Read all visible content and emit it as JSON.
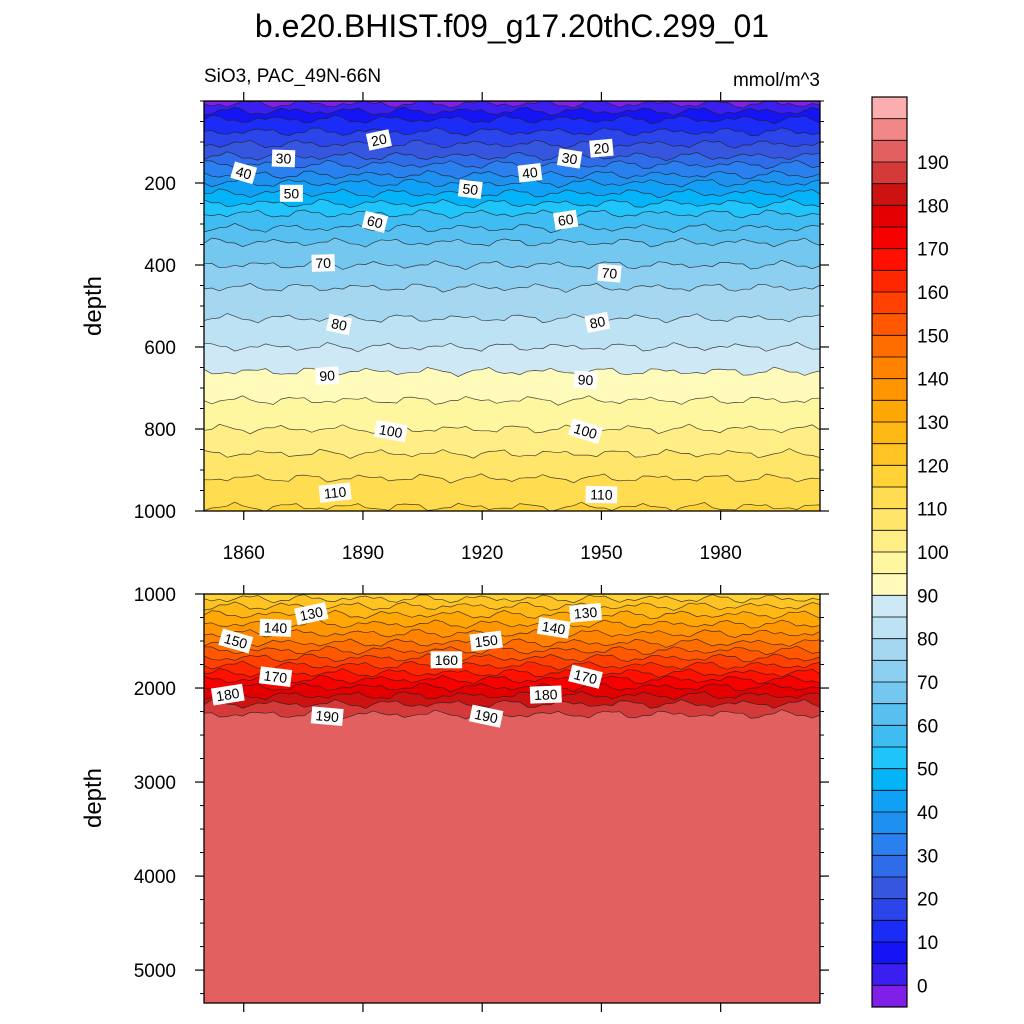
{
  "chart_data": {
    "type": "contour",
    "title": "b.e20.BHIST.f09_g17.20thC.299_01",
    "variable_label": "SiO3, PAC_49N-66N",
    "units": "mmol/m^3",
    "x_ticks": [
      1860,
      1890,
      1920,
      1950,
      1980
    ],
    "x_range": [
      1850,
      2005
    ],
    "panels": [
      {
        "name": "upper",
        "ylabel": "depth",
        "y_range": [
          0,
          1000
        ],
        "y_ticks": [
          200,
          400,
          600,
          800,
          1000
        ],
        "contour_interval": 5,
        "isolines": [
          {
            "value": 0,
            "depth": 7
          },
          {
            "value": 5,
            "depth": 25
          },
          {
            "value": 10,
            "depth": 45
          },
          {
            "value": 15,
            "depth": 75
          },
          {
            "value": 20,
            "depth": 105
          },
          {
            "value": 25,
            "depth": 135
          },
          {
            "value": 30,
            "depth": 155
          },
          {
            "value": 35,
            "depth": 180
          },
          {
            "value": 40,
            "depth": 200
          },
          {
            "value": 45,
            "depth": 225
          },
          {
            "value": 50,
            "depth": 250
          },
          {
            "value": 55,
            "depth": 275
          },
          {
            "value": 60,
            "depth": 310
          },
          {
            "value": 65,
            "depth": 345
          },
          {
            "value": 70,
            "depth": 400
          },
          {
            "value": 75,
            "depth": 455
          },
          {
            "value": 80,
            "depth": 530
          },
          {
            "value": 85,
            "depth": 600
          },
          {
            "value": 90,
            "depth": 660
          },
          {
            "value": 95,
            "depth": 730
          },
          {
            "value": 100,
            "depth": 800
          },
          {
            "value": 105,
            "depth": 860
          },
          {
            "value": 110,
            "depth": 920
          },
          {
            "value": 115,
            "depth": 990
          }
        ],
        "labels": [
          {
            "text": "20",
            "year": 1894,
            "depth": 95
          },
          {
            "text": "20",
            "year": 1950,
            "depth": 115
          },
          {
            "text": "30",
            "year": 1870,
            "depth": 140
          },
          {
            "text": "30",
            "year": 1942,
            "depth": 140
          },
          {
            "text": "40",
            "year": 1860,
            "depth": 175
          },
          {
            "text": "40",
            "year": 1932,
            "depth": 175
          },
          {
            "text": "50",
            "year": 1872,
            "depth": 225
          },
          {
            "text": "50",
            "year": 1917,
            "depth": 215
          },
          {
            "text": "60",
            "year": 1893,
            "depth": 295
          },
          {
            "text": "60",
            "year": 1941,
            "depth": 290
          },
          {
            "text": "70",
            "year": 1880,
            "depth": 395
          },
          {
            "text": "70",
            "year": 1952,
            "depth": 420
          },
          {
            "text": "80",
            "year": 1884,
            "depth": 545
          },
          {
            "text": "80",
            "year": 1949,
            "depth": 540
          },
          {
            "text": "90",
            "year": 1881,
            "depth": 670
          },
          {
            "text": "90",
            "year": 1946,
            "depth": 680
          },
          {
            "text": "100",
            "year": 1897,
            "depth": 805
          },
          {
            "text": "100",
            "year": 1946,
            "depth": 805
          },
          {
            "text": "110",
            "year": 1883,
            "depth": 955
          },
          {
            "text": "110",
            "year": 1950,
            "depth": 960
          }
        ]
      },
      {
        "name": "lower",
        "ylabel": "depth",
        "y_range": [
          1000,
          5350
        ],
        "y_ticks": [
          1000,
          2000,
          3000,
          4000,
          5000
        ],
        "contour_interval": 5,
        "isolines": [
          {
            "value": 120,
            "depth": 1050
          },
          {
            "value": 125,
            "depth": 1130
          },
          {
            "value": 130,
            "depth": 1220
          },
          {
            "value": 135,
            "depth": 1320
          },
          {
            "value": 140,
            "depth": 1420
          },
          {
            "value": 145,
            "depth": 1520
          },
          {
            "value": 150,
            "depth": 1600
          },
          {
            "value": 155,
            "depth": 1680
          },
          {
            "value": 160,
            "depth": 1760
          },
          {
            "value": 165,
            "depth": 1840
          },
          {
            "value": 170,
            "depth": 1910
          },
          {
            "value": 175,
            "depth": 1990
          },
          {
            "value": 180,
            "depth": 2080
          },
          {
            "value": 185,
            "depth": 2170
          },
          {
            "value": 190,
            "depth": 2280
          }
        ],
        "labels": [
          {
            "text": "130",
            "year": 1877,
            "depth": 1210
          },
          {
            "text": "130",
            "year": 1946,
            "depth": 1200
          },
          {
            "text": "140",
            "year": 1868,
            "depth": 1360
          },
          {
            "text": "140",
            "year": 1938,
            "depth": 1360
          },
          {
            "text": "150",
            "year": 1858,
            "depth": 1500
          },
          {
            "text": "150",
            "year": 1921,
            "depth": 1500
          },
          {
            "text": "160",
            "year": 1911,
            "depth": 1700
          },
          {
            "text": "170",
            "year": 1868,
            "depth": 1880
          },
          {
            "text": "170",
            "year": 1946,
            "depth": 1880
          },
          {
            "text": "180",
            "year": 1856,
            "depth": 2070
          },
          {
            "text": "180",
            "year": 1936,
            "depth": 2070
          },
          {
            "text": "190",
            "year": 1881,
            "depth": 2300
          },
          {
            "text": "190",
            "year": 1921,
            "depth": 2300
          }
        ]
      }
    ],
    "colorbar": {
      "levels": [
        0,
        10,
        20,
        30,
        40,
        50,
        60,
        70,
        80,
        90,
        100,
        110,
        120,
        130,
        140,
        150,
        160,
        170,
        180,
        190
      ],
      "level_step": 5,
      "colors": [
        "#7f1fe8",
        "#3a1ff0",
        "#1414f5",
        "#1a2cf5",
        "#2b45eb",
        "#3656e0",
        "#2f6cea",
        "#2a80ee",
        "#1d90f0",
        "#10a0f5",
        "#04b3f8",
        "#1fc5fa",
        "#3fbcf2",
        "#58c0f0",
        "#74c8ef",
        "#8ccff0",
        "#a5d8f0",
        "#bde2f4",
        "#cfe8f5",
        "#fffcbb",
        "#fff6a0",
        "#ffee86",
        "#ffe56a",
        "#ffdc50",
        "#ffd236",
        "#ffc423",
        "#ffb713",
        "#ffa705",
        "#ff9500",
        "#ff8200",
        "#ff6d00",
        "#ff5800",
        "#ff4000",
        "#ff2700",
        "#ff1000",
        "#f70000",
        "#e40000",
        "#cd1212",
        "#d43a3a",
        "#e26060",
        "#f28787",
        "#fcaeae"
      ]
    }
  }
}
